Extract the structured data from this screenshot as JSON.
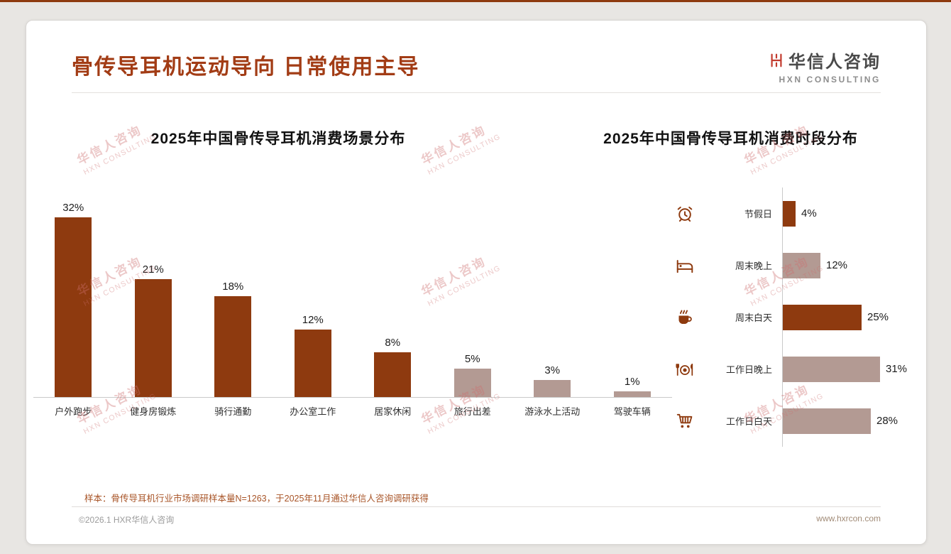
{
  "page": {
    "title": "骨传导耳机运动导向 日常使用主导",
    "logo": {
      "cn": "华信人咨询",
      "en": "HXN CONSULTING"
    },
    "watermark": {
      "cn": "华信人咨询",
      "en": "HXN CONSULTING"
    },
    "footnote": "样本：骨传导耳机行业市场调研样本量N=1263，于2025年11月通过华信人咨询调研获得",
    "footer": {
      "left": "©2026.1 HXR华信人咨询",
      "right": "www.hxrcon.com"
    }
  },
  "colors": {
    "accent_dark": "#8E3A0F",
    "accent_light": "#B39A93",
    "title": "#A23C15",
    "footnote": "#A85427"
  },
  "chart_data": [
    {
      "type": "bar",
      "orientation": "vertical",
      "title": "2025年中国骨传导耳机消费场景分布",
      "categories": [
        "户外跑步",
        "健身房锻炼",
        "骑行通勤",
        "办公室工作",
        "居家休闲",
        "旅行出差",
        "游泳水上活动",
        "驾驶车辆"
      ],
      "values": [
        32,
        21,
        18,
        12,
        8,
        5,
        3,
        1
      ],
      "unit": "%",
      "bar_colors": [
        "dark",
        "dark",
        "dark",
        "dark",
        "dark",
        "light",
        "light",
        "light"
      ],
      "ylim": [
        0,
        35
      ],
      "grid": false,
      "value_labels": true
    },
    {
      "type": "bar",
      "orientation": "horizontal",
      "title": "2025年中国骨传导耳机消费时段分布",
      "categories": [
        "节假日",
        "周末晚上",
        "周末白天",
        "工作日晚上",
        "工作日白天"
      ],
      "values": [
        4,
        12,
        25,
        31,
        28
      ],
      "unit": "%",
      "bar_colors": [
        "dark",
        "light",
        "dark",
        "light",
        "light"
      ],
      "icons": [
        "alarm-clock-icon",
        "bed-icon",
        "coffee-cup-icon",
        "dining-plate-icon",
        "shopping-cart-icon"
      ],
      "xlim": [
        0,
        35
      ],
      "grid": false,
      "value_labels": true
    }
  ]
}
